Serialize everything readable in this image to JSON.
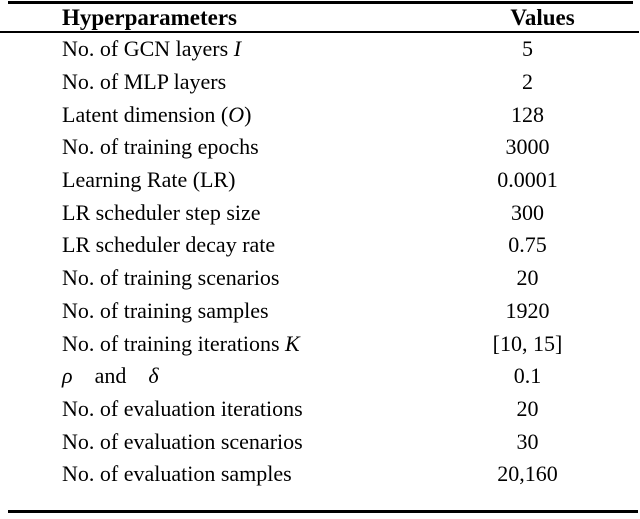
{
  "table": {
    "columns": [
      "Hyperparameters",
      "Values"
    ],
    "rows": [
      {
        "param": [
          [
            "No. of GCN layers ",
            "r"
          ],
          [
            "I",
            "i"
          ]
        ],
        "value": "5"
      },
      {
        "param": [
          [
            "No. of MLP layers",
            "r"
          ]
        ],
        "value": "2"
      },
      {
        "param": [
          [
            "Latent dimension (",
            "r"
          ],
          [
            "O",
            "i"
          ],
          [
            ")",
            "r"
          ]
        ],
        "value": "128"
      },
      {
        "param": [
          [
            "No. of training epochs",
            "r"
          ]
        ],
        "value": "3000"
      },
      {
        "param": [
          [
            "Learning Rate (LR)",
            "r"
          ]
        ],
        "value": "0.0001"
      },
      {
        "param": [
          [
            "LR scheduler step size",
            "r"
          ]
        ],
        "value": "300"
      },
      {
        "param": [
          [
            "LR scheduler decay rate",
            "r"
          ]
        ],
        "value": "0.75"
      },
      {
        "param": [
          [
            "No. of training scenarios",
            "r"
          ]
        ],
        "value": "20"
      },
      {
        "param": [
          [
            "No. of training samples",
            "r"
          ]
        ],
        "value": "1920"
      },
      {
        "param": [
          [
            "No. of training iterations ",
            "r"
          ],
          [
            "K",
            "i"
          ]
        ],
        "value": "[10, 15]"
      },
      {
        "param": [
          [
            "ρ",
            "i"
          ],
          [
            "  and  ",
            "r"
          ],
          [
            "δ",
            "i"
          ]
        ],
        "value": "0.1"
      },
      {
        "param": [
          [
            "No. of evaluation iterations",
            "r"
          ]
        ],
        "value": "20"
      },
      {
        "param": [
          [
            "No. of evaluation scenarios",
            "r"
          ]
        ],
        "value": "30"
      },
      {
        "param": [
          [
            "No. of evaluation samples",
            "r"
          ]
        ],
        "value": "20,160"
      }
    ]
  },
  "colors": {
    "text": "#000000",
    "background": "#ffffff",
    "rule": "#000000"
  }
}
